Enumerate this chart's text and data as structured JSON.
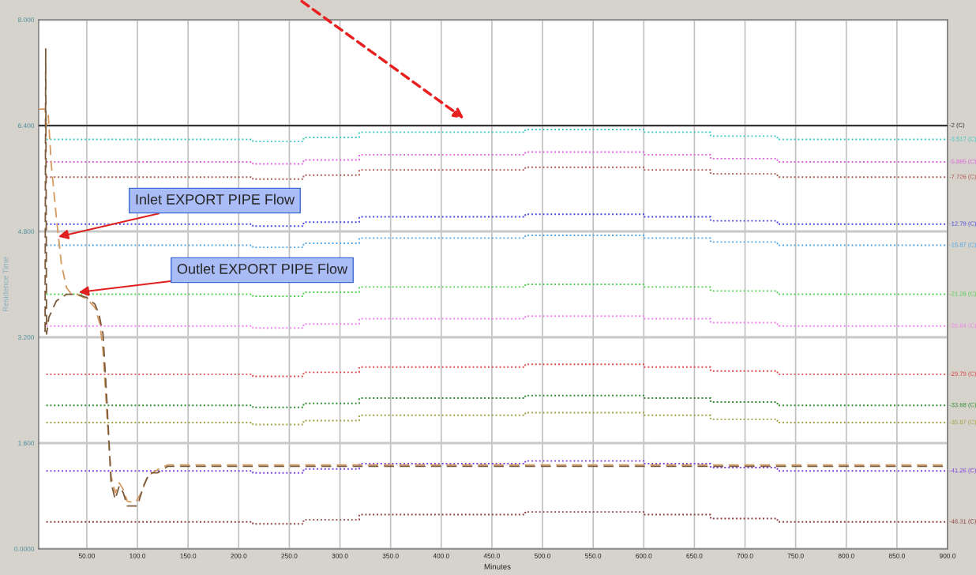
{
  "chart_data": {
    "type": "line",
    "xlabel": "Minutes",
    "ylabel": "Residence Time",
    "xlim": [
      2.5,
      900
    ],
    "ylim": [
      0,
      8
    ],
    "xticks": [
      {
        "value": 50,
        "label": "50.00"
      },
      {
        "value": 100,
        "label": "100.0"
      },
      {
        "value": 150,
        "label": "150.0"
      },
      {
        "value": 200,
        "label": "200.0"
      },
      {
        "value": 250,
        "label": "250.0"
      },
      {
        "value": 300,
        "label": "300.0"
      },
      {
        "value": 350,
        "label": "350.0"
      },
      {
        "value": 400,
        "label": "400.0"
      },
      {
        "value": 450,
        "label": "450.0"
      },
      {
        "value": 500,
        "label": "500.0"
      },
      {
        "value": 550,
        "label": "550.0"
      },
      {
        "value": 600,
        "label": "600.0"
      },
      {
        "value": 650,
        "label": "650.0"
      },
      {
        "value": 700,
        "label": "700.0"
      },
      {
        "value": 750,
        "label": "750.0"
      },
      {
        "value": 800,
        "label": "800.0"
      },
      {
        "value": 850,
        "label": "850.0"
      },
      {
        "value": 900,
        "label": "900.0"
      }
    ],
    "yticks": [
      {
        "value": 0,
        "label": "0.0000"
      },
      {
        "value": 1.6,
        "label": "1.600"
      },
      {
        "value": 3.2,
        "label": "3.200"
      },
      {
        "value": 4.8,
        "label": "4.800"
      },
      {
        "value": 6.4,
        "label": "6.400"
      },
      {
        "value": 8,
        "label": "8.000"
      }
    ],
    "grid": true,
    "legend": false,
    "marker": "none",
    "series": [
      {
        "name": "-2 (C)",
        "color": "#333333",
        "line_style": "solid",
        "x": [
          2.5,
          900
        ],
        "values": [
          6.4,
          6.4
        ]
      },
      {
        "type": "step",
        "name": "-3.517 (C)",
        "color": "#3cc8c8",
        "line_style": "dotted",
        "x": [
          10,
          214,
          264,
          319,
          483,
          600,
          666,
          732,
          900
        ],
        "values": [
          6.19,
          6.16,
          6.22,
          6.3,
          6.34,
          6.3,
          6.24,
          6.19,
          6.19
        ]
      },
      {
        "type": "step",
        "name": "-5.865 (C)",
        "color": "#e060e0",
        "line_style": "dotted",
        "x": [
          10,
          214,
          264,
          319,
          483,
          600,
          666,
          732,
          900
        ],
        "values": [
          5.85,
          5.82,
          5.88,
          5.96,
          6.0,
          5.96,
          5.9,
          5.85,
          5.85
        ]
      },
      {
        "type": "step",
        "name": "-7.726 (C)",
        "color": "#b05a50",
        "line_style": "dotted",
        "x": [
          10,
          214,
          264,
          319,
          483,
          600,
          666,
          732,
          900
        ],
        "values": [
          5.62,
          5.59,
          5.65,
          5.73,
          5.77,
          5.73,
          5.67,
          5.62,
          5.62
        ]
      },
      {
        "type": "step",
        "name": "-12.79 (C)",
        "color": "#4848e0",
        "line_style": "dotted",
        "x": [
          10,
          214,
          264,
          319,
          483,
          600,
          666,
          732,
          900
        ],
        "values": [
          4.91,
          4.88,
          4.94,
          5.02,
          5.06,
          5.02,
          4.96,
          4.91,
          4.91
        ]
      },
      {
        "type": "step",
        "name": "-15.87 (C)",
        "color": "#50a8e8",
        "line_style": "dotted",
        "x": [
          10,
          214,
          264,
          319,
          483,
          600,
          666,
          732,
          900
        ],
        "values": [
          4.59,
          4.56,
          4.62,
          4.7,
          4.74,
          4.7,
          4.64,
          4.59,
          4.59
        ]
      },
      {
        "type": "step",
        "name": "-21.26 (C)",
        "color": "#50d050",
        "line_style": "dotted",
        "x": [
          10,
          214,
          264,
          319,
          483,
          600,
          666,
          732,
          900
        ],
        "values": [
          3.85,
          3.82,
          3.88,
          3.96,
          4.0,
          3.96,
          3.9,
          3.85,
          3.85
        ]
      },
      {
        "type": "step",
        "name": "-26.64 (C)",
        "color": "#f080f0",
        "line_style": "dotted",
        "x": [
          10,
          214,
          264,
          319,
          483,
          600,
          666,
          732,
          900
        ],
        "values": [
          3.37,
          3.34,
          3.4,
          3.48,
          3.52,
          3.48,
          3.42,
          3.37,
          3.37
        ]
      },
      {
        "type": "step",
        "name": "-29.79 (C)",
        "color": "#e04848",
        "line_style": "dotted",
        "x": [
          10,
          214,
          264,
          319,
          483,
          600,
          666,
          732,
          900
        ],
        "values": [
          2.64,
          2.61,
          2.67,
          2.75,
          2.79,
          2.75,
          2.69,
          2.64,
          2.64
        ]
      },
      {
        "type": "step",
        "name": "-33.68 (C)",
        "color": "#308a30",
        "line_style": "dotted",
        "x": [
          10,
          214,
          264,
          319,
          483,
          600,
          666,
          732,
          900
        ],
        "values": [
          2.17,
          2.14,
          2.2,
          2.28,
          2.32,
          2.28,
          2.22,
          2.17,
          2.17
        ]
      },
      {
        "type": "step",
        "name": "-35.87 (C)",
        "color": "#a0a040",
        "line_style": "dotted",
        "x": [
          10,
          214,
          264,
          319,
          483,
          600,
          666,
          732,
          900
        ],
        "values": [
          1.91,
          1.88,
          1.94,
          2.02,
          2.06,
          2.02,
          1.96,
          1.91,
          1.91
        ]
      },
      {
        "type": "step",
        "name": "-41.26 (C)",
        "color": "#8040e0",
        "line_style": "dotted",
        "x": [
          10,
          214,
          264,
          319,
          483,
          600,
          666,
          732,
          900
        ],
        "values": [
          1.18,
          1.15,
          1.21,
          1.29,
          1.33,
          1.29,
          1.23,
          1.18,
          1.18
        ]
      },
      {
        "type": "step",
        "name": "-46.31 (C)",
        "color": "#904040",
        "line_style": "dotted",
        "x": [
          10,
          214,
          264,
          319,
          483,
          600,
          666,
          732,
          900
        ],
        "values": [
          0.41,
          0.38,
          0.44,
          0.52,
          0.56,
          0.52,
          0.46,
          0.41,
          0.41
        ]
      },
      {
        "color": "#d49a60",
        "line_style": "dashed",
        "x": [
          2.5,
          9,
          10,
          12,
          15,
          20,
          25,
          30,
          35,
          40,
          50,
          58,
          63,
          66,
          70,
          74,
          78,
          82,
          86,
          90,
          98,
          104,
          110,
          120,
          130,
          900
        ],
        "values": [
          6.65,
          6.65,
          6.4,
          6.55,
          5.8,
          5.0,
          4.3,
          3.95,
          3.85,
          3.85,
          3.78,
          3.65,
          3.4,
          3.0,
          2.0,
          1.1,
          0.85,
          1.0,
          0.9,
          0.72,
          0.7,
          0.85,
          1.1,
          1.2,
          1.27,
          1.27
        ]
      },
      {
        "color": "#7a5a3a",
        "line_style": "dashed",
        "x": [
          8.8,
          9.4,
          10.3,
          12.5,
          20,
          30,
          40,
          50,
          58,
          62,
          66,
          70,
          74,
          78,
          82,
          86,
          90,
          95,
          100,
          106,
          112,
          120,
          130,
          200,
          900
        ],
        "values": [
          3.28,
          7.56,
          3.25,
          3.5,
          3.75,
          3.85,
          3.85,
          3.8,
          3.7,
          3.55,
          3.25,
          2.2,
          1.0,
          0.75,
          0.95,
          0.85,
          0.65,
          0.65,
          0.65,
          0.95,
          1.15,
          1.15,
          1.25,
          1.25,
          1.25
        ]
      }
    ],
    "annotations": [
      {
        "text": "Inlet EXPORT PIPE Flow",
        "x": 22,
        "y": 4.72
      },
      {
        "text": "Outlet EXPORT PIPE Flow",
        "x": 42,
        "y": 3.88
      }
    ]
  }
}
